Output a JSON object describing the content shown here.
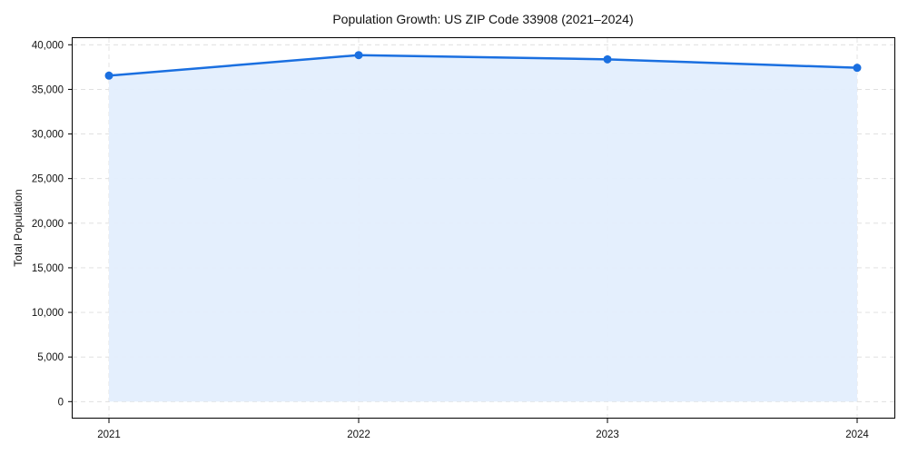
{
  "chart_data": {
    "type": "area",
    "title": "Population Growth: US ZIP Code 33908 (2021–2024)",
    "xlabel": "",
    "ylabel": "Total Population",
    "categories": [
      "2021",
      "2022",
      "2023",
      "2024"
    ],
    "series": [
      {
        "name": "Total Population",
        "values": [
          36540,
          38840,
          38370,
          37420
        ],
        "color": "#1a6fe0",
        "fill": "#e3eefd"
      }
    ],
    "ylim": [
      -2000,
      42000
    ],
    "yticks": [
      0,
      5000,
      10000,
      15000,
      20000,
      25000,
      30000,
      35000,
      40000
    ],
    "ytick_labels": [
      "0",
      "5,000",
      "10,000",
      "15,000",
      "20,000",
      "25,000",
      "30,000",
      "35,000",
      "40,000"
    ],
    "grid": true,
    "legend": null,
    "markers": true
  }
}
